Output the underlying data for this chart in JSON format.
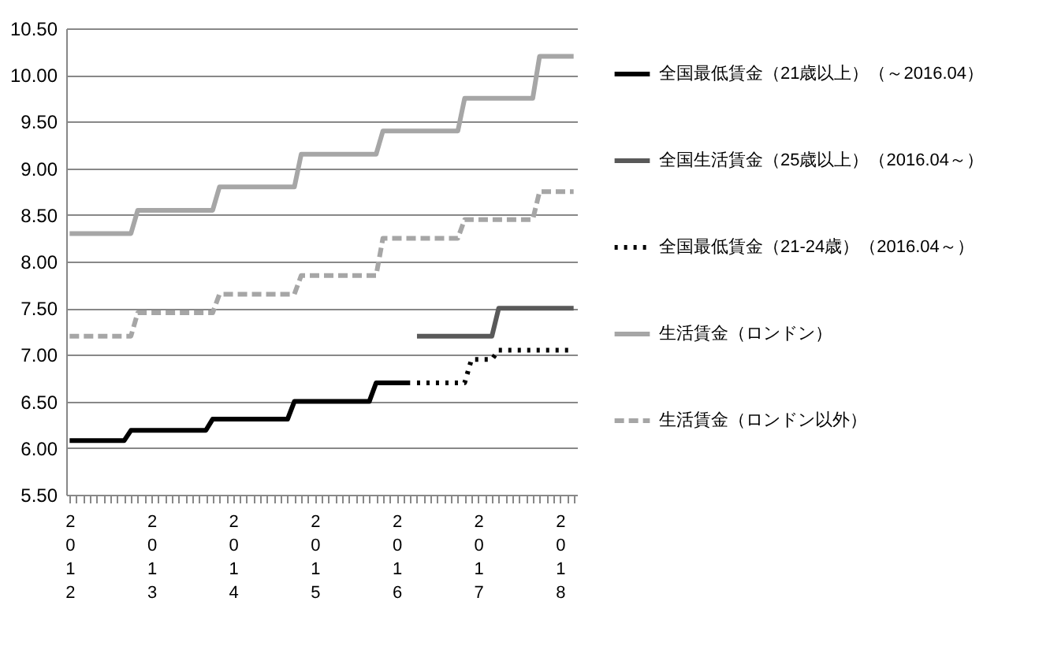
{
  "chart_data": {
    "type": "line",
    "categories": [
      "2012",
      null,
      null,
      null,
      null,
      null,
      null,
      null,
      null,
      null,
      null,
      null,
      "2013",
      null,
      null,
      null,
      null,
      null,
      null,
      null,
      null,
      null,
      null,
      null,
      "2014",
      null,
      null,
      null,
      null,
      null,
      null,
      null,
      null,
      null,
      null,
      null,
      "2015",
      null,
      null,
      null,
      null,
      null,
      null,
      null,
      null,
      null,
      null,
      null,
      "2016",
      null,
      null,
      null,
      null,
      null,
      null,
      null,
      null,
      null,
      null,
      null,
      "2017",
      null,
      null,
      null,
      null,
      null,
      null,
      null,
      null,
      null,
      null,
      null,
      "2018",
      null,
      null
    ],
    "series": [
      {
        "name": "全国最低賃金（21歳以上）（～2016.04）",
        "color": "#000000",
        "line_style": "solid",
        "values": [
          6.08,
          6.08,
          6.08,
          6.08,
          6.08,
          6.08,
          6.08,
          6.08,
          6.08,
          6.19,
          6.19,
          6.19,
          6.19,
          6.19,
          6.19,
          6.19,
          6.19,
          6.19,
          6.19,
          6.19,
          6.19,
          6.31,
          6.31,
          6.31,
          6.31,
          6.31,
          6.31,
          6.31,
          6.31,
          6.31,
          6.31,
          6.31,
          6.31,
          6.5,
          6.5,
          6.5,
          6.5,
          6.5,
          6.5,
          6.5,
          6.5,
          6.5,
          6.5,
          6.5,
          6.5,
          6.7,
          6.7,
          6.7,
          6.7,
          6.7,
          6.7,
          null,
          null,
          null,
          null,
          null,
          null,
          null,
          null,
          null,
          null,
          null,
          null,
          null,
          null,
          null,
          null,
          null,
          null,
          null,
          null,
          null,
          null,
          null,
          null
        ]
      },
      {
        "name": "全国生活賃金（25歳以上）（2016.04～）",
        "color": "#595959",
        "line_style": "solid",
        "values": [
          null,
          null,
          null,
          null,
          null,
          null,
          null,
          null,
          null,
          null,
          null,
          null,
          null,
          null,
          null,
          null,
          null,
          null,
          null,
          null,
          null,
          null,
          null,
          null,
          null,
          null,
          null,
          null,
          null,
          null,
          null,
          null,
          null,
          null,
          null,
          null,
          null,
          null,
          null,
          null,
          null,
          null,
          null,
          null,
          null,
          null,
          null,
          null,
          null,
          null,
          null,
          7.2,
          7.2,
          7.2,
          7.2,
          7.2,
          7.2,
          7.2,
          7.2,
          7.2,
          7.2,
          7.2,
          7.2,
          7.5,
          7.5,
          7.5,
          7.5,
          7.5,
          7.5,
          7.5,
          7.5,
          7.5,
          7.5,
          7.5,
          7.5
        ]
      },
      {
        "name": "全国最低賃金（21-24歳）（2016.04～）",
        "color": "#000000",
        "line_style": "dotted",
        "values": [
          null,
          null,
          null,
          null,
          null,
          null,
          null,
          null,
          null,
          null,
          null,
          null,
          null,
          null,
          null,
          null,
          null,
          null,
          null,
          null,
          null,
          null,
          null,
          null,
          null,
          null,
          null,
          null,
          null,
          null,
          null,
          null,
          null,
          null,
          null,
          null,
          null,
          null,
          null,
          null,
          null,
          null,
          null,
          null,
          null,
          null,
          null,
          null,
          null,
          null,
          null,
          6.7,
          6.7,
          6.7,
          6.7,
          6.7,
          6.7,
          6.7,
          6.7,
          6.95,
          6.95,
          6.95,
          6.95,
          7.05,
          7.05,
          7.05,
          7.05,
          7.05,
          7.05,
          7.05,
          7.05,
          7.05,
          7.05,
          7.05,
          7.05
        ]
      },
      {
        "name": "生活賃金（ロンドン）",
        "color": "#a6a6a6",
        "line_style": "solid",
        "values": [
          8.3,
          8.3,
          8.3,
          8.3,
          8.3,
          8.3,
          8.3,
          8.3,
          8.3,
          8.3,
          8.55,
          8.55,
          8.55,
          8.55,
          8.55,
          8.55,
          8.55,
          8.55,
          8.55,
          8.55,
          8.55,
          8.55,
          8.8,
          8.8,
          8.8,
          8.8,
          8.8,
          8.8,
          8.8,
          8.8,
          8.8,
          8.8,
          8.8,
          8.8,
          9.15,
          9.15,
          9.15,
          9.15,
          9.15,
          9.15,
          9.15,
          9.15,
          9.15,
          9.15,
          9.15,
          9.15,
          9.4,
          9.4,
          9.4,
          9.4,
          9.4,
          9.4,
          9.4,
          9.4,
          9.4,
          9.4,
          9.4,
          9.4,
          9.75,
          9.75,
          9.75,
          9.75,
          9.75,
          9.75,
          9.75,
          9.75,
          9.75,
          9.75,
          9.75,
          10.2,
          10.2,
          10.2,
          10.2,
          10.2,
          10.2
        ]
      },
      {
        "name": "生活賃金（ロンドン以外）",
        "color": "#a6a6a6",
        "line_style": "dashed",
        "values": [
          7.2,
          7.2,
          7.2,
          7.2,
          7.2,
          7.2,
          7.2,
          7.2,
          7.2,
          7.2,
          7.45,
          7.45,
          7.45,
          7.45,
          7.45,
          7.45,
          7.45,
          7.45,
          7.45,
          7.45,
          7.45,
          7.45,
          7.65,
          7.65,
          7.65,
          7.65,
          7.65,
          7.65,
          7.65,
          7.65,
          7.65,
          7.65,
          7.65,
          7.65,
          7.85,
          7.85,
          7.85,
          7.85,
          7.85,
          7.85,
          7.85,
          7.85,
          7.85,
          7.85,
          7.85,
          7.85,
          8.25,
          8.25,
          8.25,
          8.25,
          8.25,
          8.25,
          8.25,
          8.25,
          8.25,
          8.25,
          8.25,
          8.25,
          8.45,
          8.45,
          8.45,
          8.45,
          8.45,
          8.45,
          8.45,
          8.45,
          8.45,
          8.45,
          8.45,
          8.75,
          8.75,
          8.75,
          8.75,
          8.75,
          8.75
        ]
      }
    ],
    "ylim": [
      5.5,
      10.5
    ],
    "yticks": [
      {
        "value": 5.5,
        "label": "5.50"
      },
      {
        "value": 6,
        "label": "6.00"
      },
      {
        "value": 6.5,
        "label": "6.50"
      },
      {
        "value": 7,
        "label": "7.00"
      },
      {
        "value": 7.5,
        "label": "7.50"
      },
      {
        "value": 8,
        "label": "8.00"
      },
      {
        "value": 8.5,
        "label": "8.50"
      },
      {
        "value": 9,
        "label": "9.00"
      },
      {
        "value": 9.5,
        "label": "9.50"
      },
      {
        "value": 10,
        "label": "10.00"
      },
      {
        "value": 10.5,
        "label": "10.50"
      }
    ],
    "grid": "y",
    "legend": "right",
    "marker": "none"
  }
}
